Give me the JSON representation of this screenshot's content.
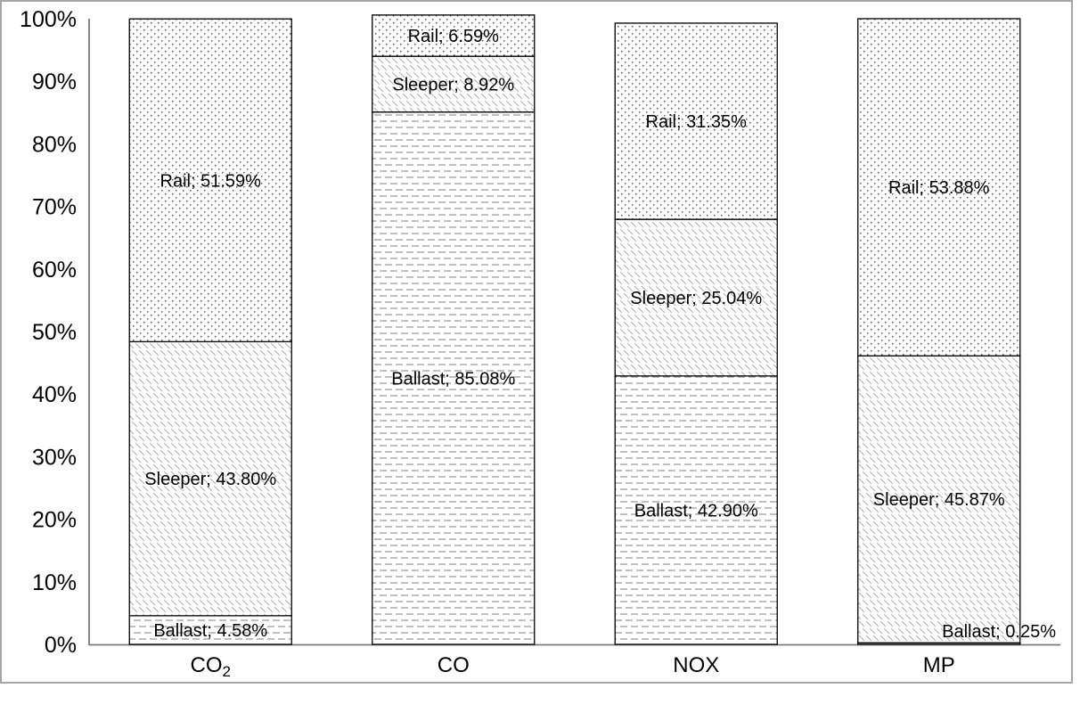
{
  "page": {
    "background": "#ffffff",
    "frame_border_color": "#a6a6a6"
  },
  "chart_data": {
    "type": "bar",
    "subtype": "100%-stacked-column",
    "title": "",
    "legend": null,
    "grid": false,
    "categories": [
      {
        "text": "CO",
        "subscript": "2"
      },
      {
        "text": "CO",
        "subscript": ""
      },
      {
        "text": "NOX",
        "subscript": ""
      },
      {
        "text": "MP",
        "subscript": ""
      }
    ],
    "series_bottom_to_top": [
      {
        "name": "Ballast",
        "pattern": "horizontal-dashes",
        "pattern_color": "#9b9b9b",
        "values": [
          4.58,
          85.08,
          42.9,
          0.25
        ]
      },
      {
        "name": "Sleeper",
        "pattern": "light-diagonal-hatch",
        "pattern_color": "#b3b3b3",
        "values": [
          43.8,
          8.92,
          25.04,
          45.87
        ]
      },
      {
        "name": "Rail",
        "pattern": "dots",
        "pattern_color": "#595959",
        "values": [
          51.59,
          6.59,
          31.35,
          53.88
        ]
      }
    ],
    "data_labels": [
      "Ballast; 4.58%",
      "Sleeper; 43.80%",
      "Rail; 51.59%",
      "Ballast; 85.08%",
      "Sleeper; 8.92%",
      "Rail; 6.59%",
      "Ballast; 42.90%",
      "Sleeper; 25.04%",
      "Rail; 31.35%",
      "Ballast; 0.25%",
      "Sleeper; 45.87%",
      "Rail; 53.88%"
    ],
    "data_label_format": "{series}; {value}%",
    "y_axis": {
      "min": 0,
      "max": 100,
      "step": 10,
      "tick_labels": [
        "0%",
        "10%",
        "20%",
        "30%",
        "40%",
        "50%",
        "60%",
        "70%",
        "80%",
        "90%",
        "100%"
      ]
    },
    "x_axis_labels_display": [
      "CO₂",
      "CO",
      "NOX",
      "MP"
    ],
    "bar_outline_color": "#000000",
    "axis_line_color": "#7a7a7a",
    "text_color": "#000000",
    "fill_base_color": "#ffffff"
  }
}
